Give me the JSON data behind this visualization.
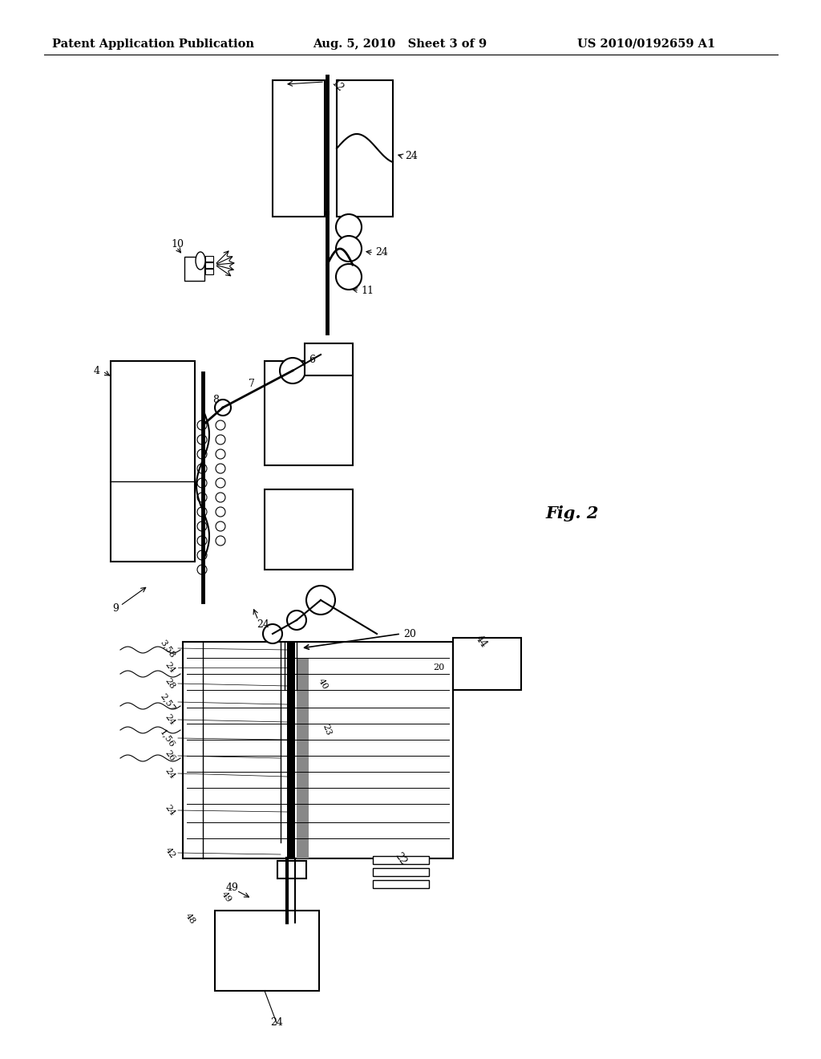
{
  "background_color": "#ffffff",
  "header_left": "Patent Application Publication",
  "header_mid": "Aug. 5, 2010   Sheet 3 of 9",
  "header_right": "US 2010/0192659 A1",
  "fig_label": "Fig. 2"
}
